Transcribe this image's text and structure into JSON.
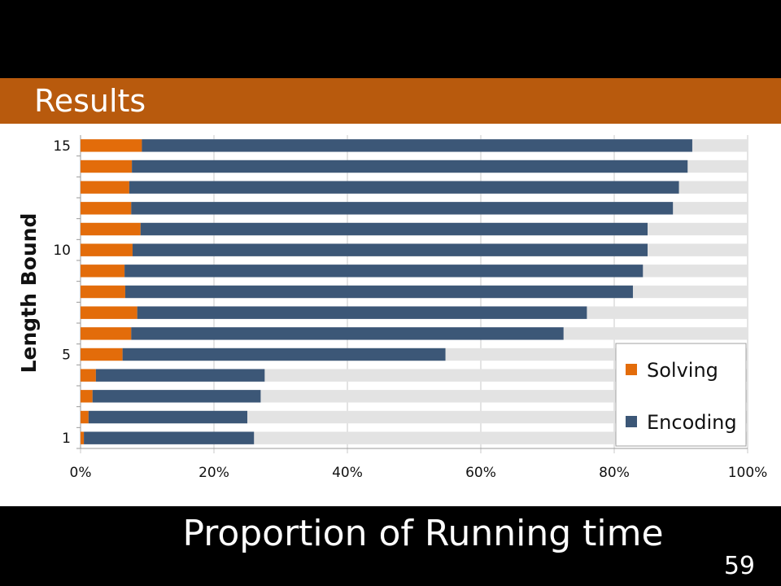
{
  "slide": {
    "title": "Results",
    "caption": "Proportion of Running time",
    "page_number": "59"
  },
  "colors": {
    "title_band": "#b85a0d",
    "solving": "#e36c0a",
    "encoding": "#3c5777",
    "remainder": "#e3e3e3",
    "background": "#000000"
  },
  "chart_data": {
    "type": "bar",
    "orientation": "horizontal",
    "stacked": true,
    "ylabel": "Length Bound",
    "y_tick_labels": [
      {
        "value": 1,
        "label": "1"
      },
      {
        "value": 5,
        "label": "5"
      },
      {
        "value": 10,
        "label": "10"
      },
      {
        "value": 15,
        "label": "15"
      }
    ],
    "x_tick_labels": [
      "0%",
      "20%",
      "40%",
      "60%",
      "80%",
      "100%"
    ],
    "xlim": [
      0,
      100
    ],
    "grid": true,
    "legend": {
      "position": "bottom-right",
      "entries": [
        "Solving",
        "Encoding"
      ]
    },
    "categories": [
      1,
      2,
      3,
      4,
      5,
      6,
      7,
      8,
      9,
      10,
      11,
      12,
      13,
      14,
      15
    ],
    "series": [
      {
        "name": "Solving",
        "values": [
          0.5,
          1.2,
          1.8,
          2.3,
          6.3,
          7.6,
          8.5,
          6.7,
          6.6,
          7.8,
          9.0,
          7.6,
          7.3,
          7.7,
          9.2
        ]
      },
      {
        "name": "Encoding",
        "values": [
          25.5,
          23.8,
          25.2,
          25.3,
          48.4,
          64.8,
          67.4,
          76.1,
          77.7,
          77.2,
          76.0,
          81.2,
          82.4,
          83.3,
          82.5
        ]
      }
    ]
  }
}
